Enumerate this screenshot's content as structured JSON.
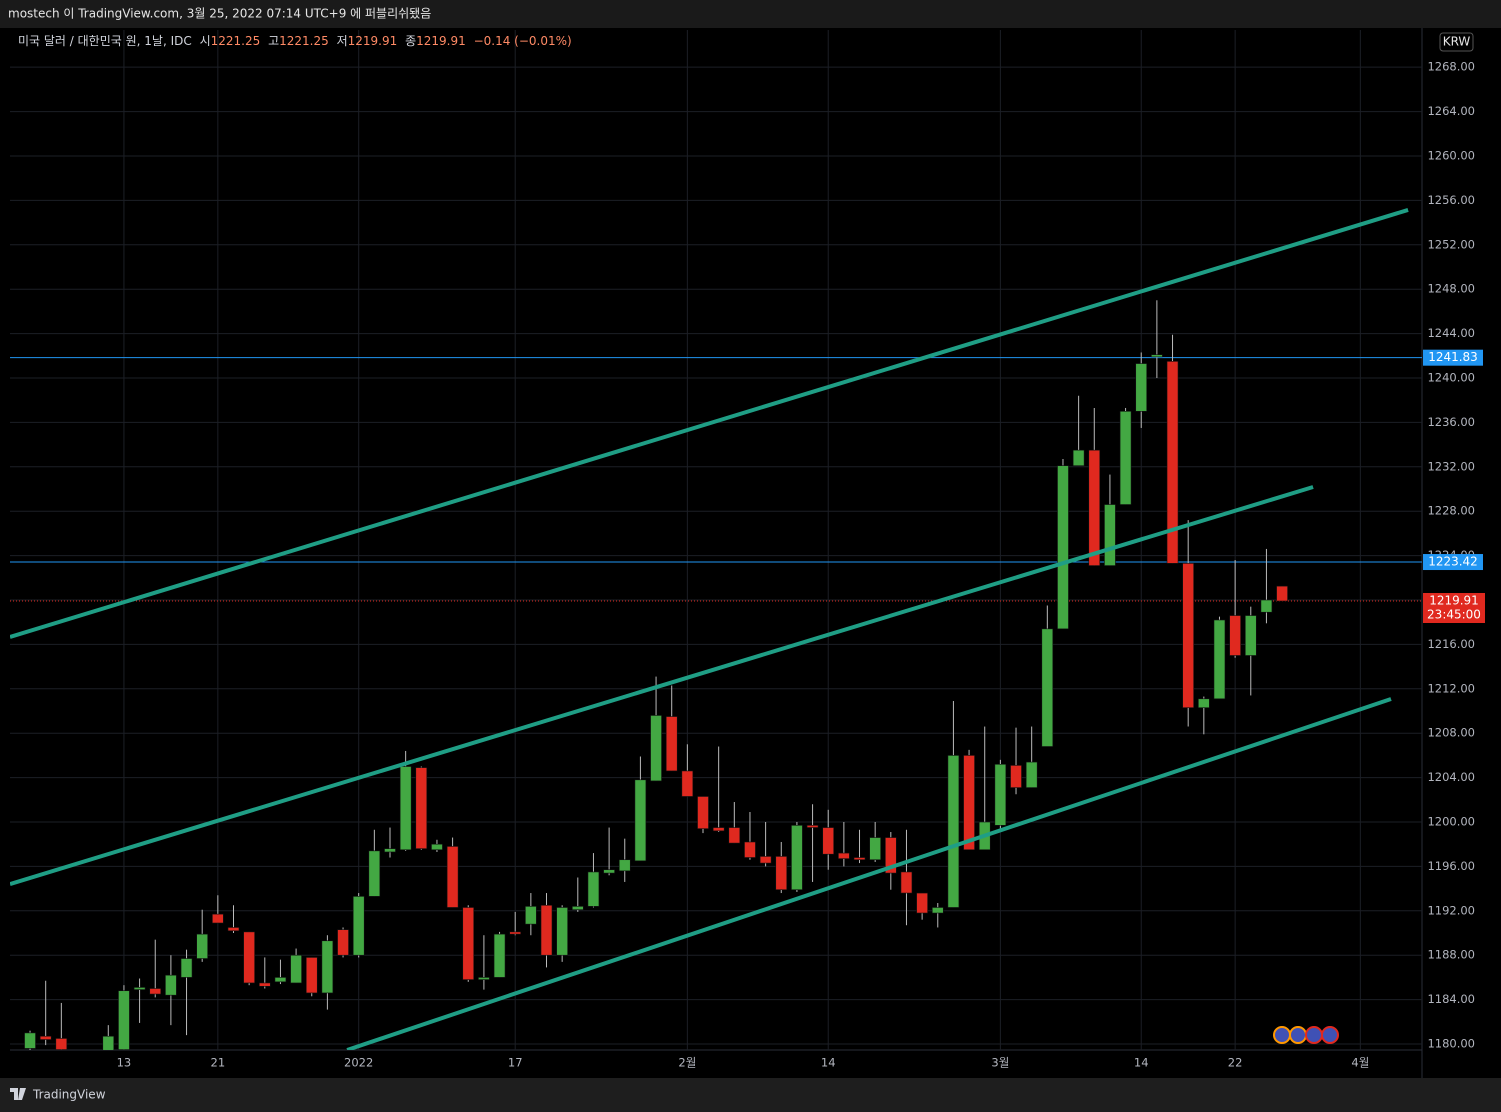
{
  "header": {
    "publish_note": "mostech 이 TradingView.com, 3월 25, 2022 07:14 UTC+9 에 퍼블리쉬됐음"
  },
  "chart_data": {
    "type": "candlestick",
    "symbol": "미국 달러 / 대한민국 원, 1날, IDC",
    "ohlc_labels": [
      "시",
      "고",
      "저",
      "종"
    ],
    "change": "−0.14 (−0.01%)",
    "currency": "KRW",
    "up_color": "#43a843",
    "down_color": "#e0291f",
    "x": [
      0,
      1,
      2,
      5,
      6,
      7,
      8,
      9,
      10,
      11,
      12,
      13,
      14,
      15,
      16,
      17,
      18,
      19,
      20,
      21,
      22,
      23,
      24,
      25,
      26,
      27,
      28,
      29,
      30,
      31,
      32,
      33,
      34,
      35,
      36,
      37,
      38,
      39,
      40,
      41,
      42,
      43,
      44,
      45,
      46,
      47,
      48,
      49,
      50,
      51,
      52,
      53,
      54,
      55,
      56,
      57,
      58,
      59,
      60,
      61,
      62,
      63,
      64,
      65,
      66,
      67,
      68,
      69,
      70,
      71,
      72,
      73,
      74,
      75,
      76,
      77,
      78,
      79,
      80
    ],
    "open": [
      1179.6,
      1180.7,
      1180.5,
      1179.3,
      1179.5,
      1184.9,
      1185.0,
      1184.4,
      1186.0,
      1187.7,
      1191.7,
      1190.5,
      1190.1,
      1185.5,
      1185.6,
      1185.5,
      1187.8,
      1184.6,
      1190.3,
      1188.0,
      1193.3,
      1197.3,
      1197.5,
      1204.9,
      1197.5,
      1197.8,
      1192.3,
      1185.8,
      1186.0,
      1190.1,
      1190.8,
      1192.5,
      1188.0,
      1192.1,
      1192.4,
      1195.4,
      1195.6,
      1196.5,
      1203.7,
      1209.5,
      1204.6,
      1202.3,
      1199.5,
      1199.5,
      1198.2,
      1196.9,
      1196.9,
      1193.9,
      1199.7,
      1199.5,
      1197.2,
      1196.8,
      1196.6,
      1198.6,
      1195.5,
      1193.6,
      1191.8,
      1192.3,
      1206.0,
      1197.5,
      1199.7,
      1205.1,
      1203.1,
      1206.8,
      1217.4,
      1232.1,
      1233.5,
      1223.1,
      1228.6,
      1237.0,
      1241.9,
      1241.5,
      1223.3,
      1210.3,
      1211.1,
      1218.6,
      1215.0,
      1218.9,
      1221.25
    ],
    "high": [
      1181.2,
      1185.7,
      1183.7,
      1181.7,
      1185.3,
      1185.9,
      1189.4,
      1188.0,
      1188.5,
      1192.1,
      1193.4,
      1192.5,
      1190.1,
      1187.8,
      1187.6,
      1188.6,
      1187.8,
      1189.8,
      1190.5,
      1193.6,
      1199.3,
      1199.5,
      1206.4,
      1205.0,
      1198.4,
      1198.6,
      1192.5,
      1189.8,
      1190.1,
      1191.9,
      1193.6,
      1193.6,
      1192.5,
      1195.0,
      1197.2,
      1199.5,
      1198.5,
      1205.9,
      1213.1,
      1212.3,
      1207.0,
      1202.3,
      1206.8,
      1201.8,
      1200.9,
      1200.0,
      1198.2,
      1200.0,
      1201.6,
      1201.1,
      1200.0,
      1199.3,
      1200.0,
      1199.1,
      1199.3,
      1193.6,
      1192.7,
      1210.9,
      1206.5,
      1208.6,
      1205.6,
      1208.5,
      1208.6,
      1219.5,
      1232.7,
      1238.4,
      1237.3,
      1231.3,
      1237.3,
      1242.3,
      1247.0,
      1243.9,
      1227.2,
      1211.3,
      1218.5,
      1223.6,
      1219.4,
      1224.6,
      1221.25
    ],
    "low": [
      1179.0,
      1179.9,
      1179.0,
      1179.0,
      1179.0,
      1181.9,
      1184.2,
      1181.7,
      1180.8,
      1187.4,
      1190.9,
      1190.0,
      1185.3,
      1185.0,
      1185.4,
      1185.5,
      1184.3,
      1183.1,
      1187.8,
      1187.8,
      1193.3,
      1196.8,
      1197.4,
      1197.5,
      1197.3,
      1192.3,
      1185.6,
      1184.9,
      1186.0,
      1189.8,
      1189.8,
      1186.9,
      1187.4,
      1191.9,
      1192.3,
      1195.2,
      1194.6,
      1196.5,
      1203.7,
      1204.6,
      1202.3,
      1199.0,
      1199.1,
      1198.1,
      1196.6,
      1196.0,
      1193.6,
      1193.7,
      1194.6,
      1195.7,
      1196.0,
      1196.3,
      1196.4,
      1193.9,
      1190.7,
      1191.2,
      1190.5,
      1192.3,
      1197.5,
      1197.5,
      1199.3,
      1202.5,
      1203.1,
      1206.8,
      1217.4,
      1232.1,
      1223.1,
      1223.1,
      1228.6,
      1235.5,
      1240.0,
      1223.3,
      1208.6,
      1207.9,
      1211.1,
      1214.8,
      1211.4,
      1217.9,
      1219.91
    ],
    "close": [
      1181.0,
      1180.4,
      1179.5,
      1180.7,
      1184.8,
      1185.1,
      1184.5,
      1186.2,
      1187.7,
      1189.9,
      1190.9,
      1190.2,
      1185.5,
      1185.2,
      1186.0,
      1188.0,
      1184.6,
      1189.3,
      1188.0,
      1193.3,
      1197.4,
      1197.6,
      1205.0,
      1197.6,
      1198.0,
      1192.3,
      1185.8,
      1186.0,
      1189.9,
      1189.9,
      1192.4,
      1188.0,
      1192.3,
      1192.4,
      1195.5,
      1195.7,
      1196.6,
      1203.8,
      1209.6,
      1204.6,
      1202.3,
      1199.4,
      1199.2,
      1198.1,
      1196.8,
      1196.3,
      1193.9,
      1199.7,
      1199.5,
      1197.1,
      1196.7,
      1196.6,
      1198.6,
      1195.4,
      1193.6,
      1191.8,
      1192.3,
      1206.0,
      1197.5,
      1200.0,
      1205.2,
      1203.1,
      1205.4,
      1217.4,
      1232.1,
      1233.5,
      1223.1,
      1228.6,
      1237.0,
      1241.3,
      1242.1,
      1223.3,
      1210.3,
      1211.1,
      1218.2,
      1215.0,
      1218.6,
      1220.0,
      1219.91
    ],
    "xlim": [
      -1.28,
      88.94
    ],
    "xticks": [
      {
        "value": 6,
        "label": "13"
      },
      {
        "value": 12,
        "label": "21"
      },
      {
        "value": 21,
        "label": "2022"
      },
      {
        "value": 31,
        "label": "17"
      },
      {
        "value": 42,
        "label": "2월"
      },
      {
        "value": 51,
        "label": "14"
      },
      {
        "value": 62,
        "label": "3월"
      },
      {
        "value": 71,
        "label": "14"
      },
      {
        "value": 77,
        "label": "22"
      },
      {
        "value": 85,
        "label": "4월"
      }
    ],
    "ylim": [
      1179.46,
      1271.35
    ],
    "yticks": [
      {
        "value": 1180,
        "label": "1180.00"
      },
      {
        "value": 1184,
        "label": "1184.00"
      },
      {
        "value": 1188,
        "label": "1188.00"
      },
      {
        "value": 1192,
        "label": "1192.00"
      },
      {
        "value": 1196,
        "label": "1196.00"
      },
      {
        "value": 1200,
        "label": "1200.00"
      },
      {
        "value": 1204,
        "label": "1204.00"
      },
      {
        "value": 1208,
        "label": "1208.00"
      },
      {
        "value": 1212,
        "label": "1212.00"
      },
      {
        "value": 1216,
        "label": "1216.00"
      },
      {
        "value": 1220,
        "label": "1220.00"
      },
      {
        "value": 1224,
        "label": "1224.00"
      },
      {
        "value": 1228,
        "label": "1228.00"
      },
      {
        "value": 1232,
        "label": "1232.00"
      },
      {
        "value": 1236,
        "label": "1236.00"
      },
      {
        "value": 1240,
        "label": "1240.00"
      },
      {
        "value": 1244,
        "label": "1244.00"
      },
      {
        "value": 1248,
        "label": "1248.00"
      },
      {
        "value": 1252,
        "label": "1252.00"
      },
      {
        "value": 1256,
        "label": "1256.00"
      },
      {
        "value": 1260,
        "label": "1260.00"
      },
      {
        "value": 1264,
        "label": "1264.00"
      },
      {
        "value": 1268,
        "label": "1268.00"
      }
    ],
    "grid": true,
    "price_lines": [
      {
        "value": 1241.83,
        "color": "#2196f3"
      },
      {
        "value": 1223.42,
        "color": "#2196f3"
      }
    ],
    "last_price": {
      "value": 1219.91,
      "countdown": "23:45:00",
      "color": "#e0291f"
    },
    "trendline_color": "#1f9e85",
    "trendlines": [
      {
        "x": [
          -1.28,
          88.05
        ],
        "y": [
          1216.67,
          1255.14
        ]
      },
      {
        "x": [
          -1.28,
          81.98
        ],
        "y": [
          1194.41,
          1230.18
        ]
      },
      {
        "x": [
          20.26,
          86.96
        ],
        "y": [
          1179.46,
          1211.08
        ]
      }
    ]
  },
  "footer": {
    "brand": "TradingView"
  }
}
